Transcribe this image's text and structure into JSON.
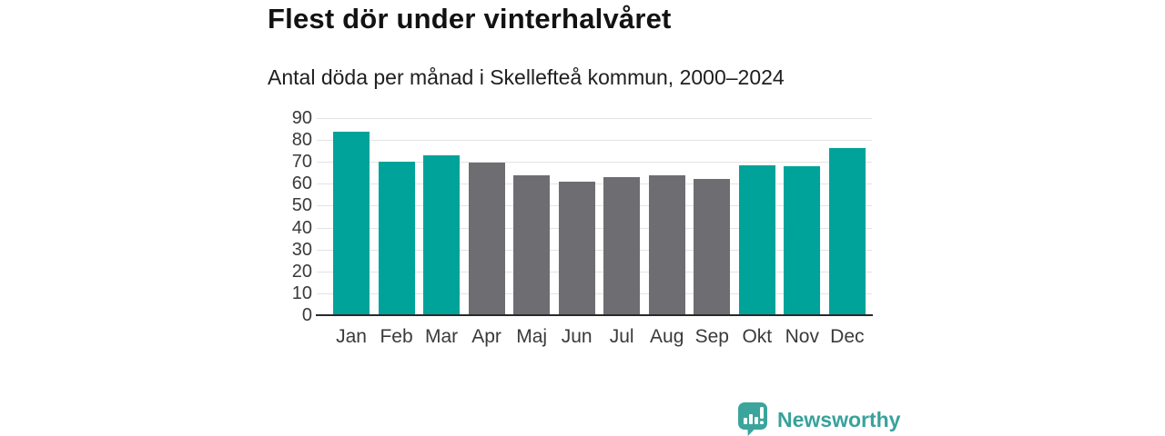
{
  "header": {
    "title": "Flest dör under vinterhalvåret",
    "subtitle": "Antal döda per månad i Skellefteå kommun, 2000–2024"
  },
  "chart_data": {
    "type": "bar",
    "title": "Flest dör under vinterhalvåret",
    "subtitle": "Antal döda per månad i Skellefteå kommun, 2000–2024",
    "categories": [
      "Jan",
      "Feb",
      "Mar",
      "Apr",
      "Maj",
      "Jun",
      "Jul",
      "Aug",
      "Sep",
      "Okt",
      "Nov",
      "Dec"
    ],
    "values": [
      83.8,
      70.2,
      73.2,
      69.7,
      63.8,
      61.1,
      63.2,
      63.9,
      62.1,
      68.3,
      67.9,
      76.2
    ],
    "bar_colors": [
      "#00a39a",
      "#00a39a",
      "#00a39a",
      "#6e6d72",
      "#6e6d72",
      "#6e6d72",
      "#6e6d72",
      "#6e6d72",
      "#6e6d72",
      "#00a39a",
      "#00a39a",
      "#00a39a"
    ],
    "color_legend": {
      "winter_half_year": "#00a39a",
      "summer_half_year": "#6e6d72"
    },
    "xlabel": "",
    "ylabel": "",
    "ylim": [
      0,
      90
    ],
    "yticks": [
      0,
      10,
      20,
      30,
      40,
      50,
      60,
      70,
      80,
      90
    ],
    "grid": true,
    "legend_position": "none"
  },
  "branding": {
    "logo_text": "Newsworthy",
    "logo_color": "#38a29b",
    "logo_icon": "bar-chart-speech-bubble-icon"
  }
}
